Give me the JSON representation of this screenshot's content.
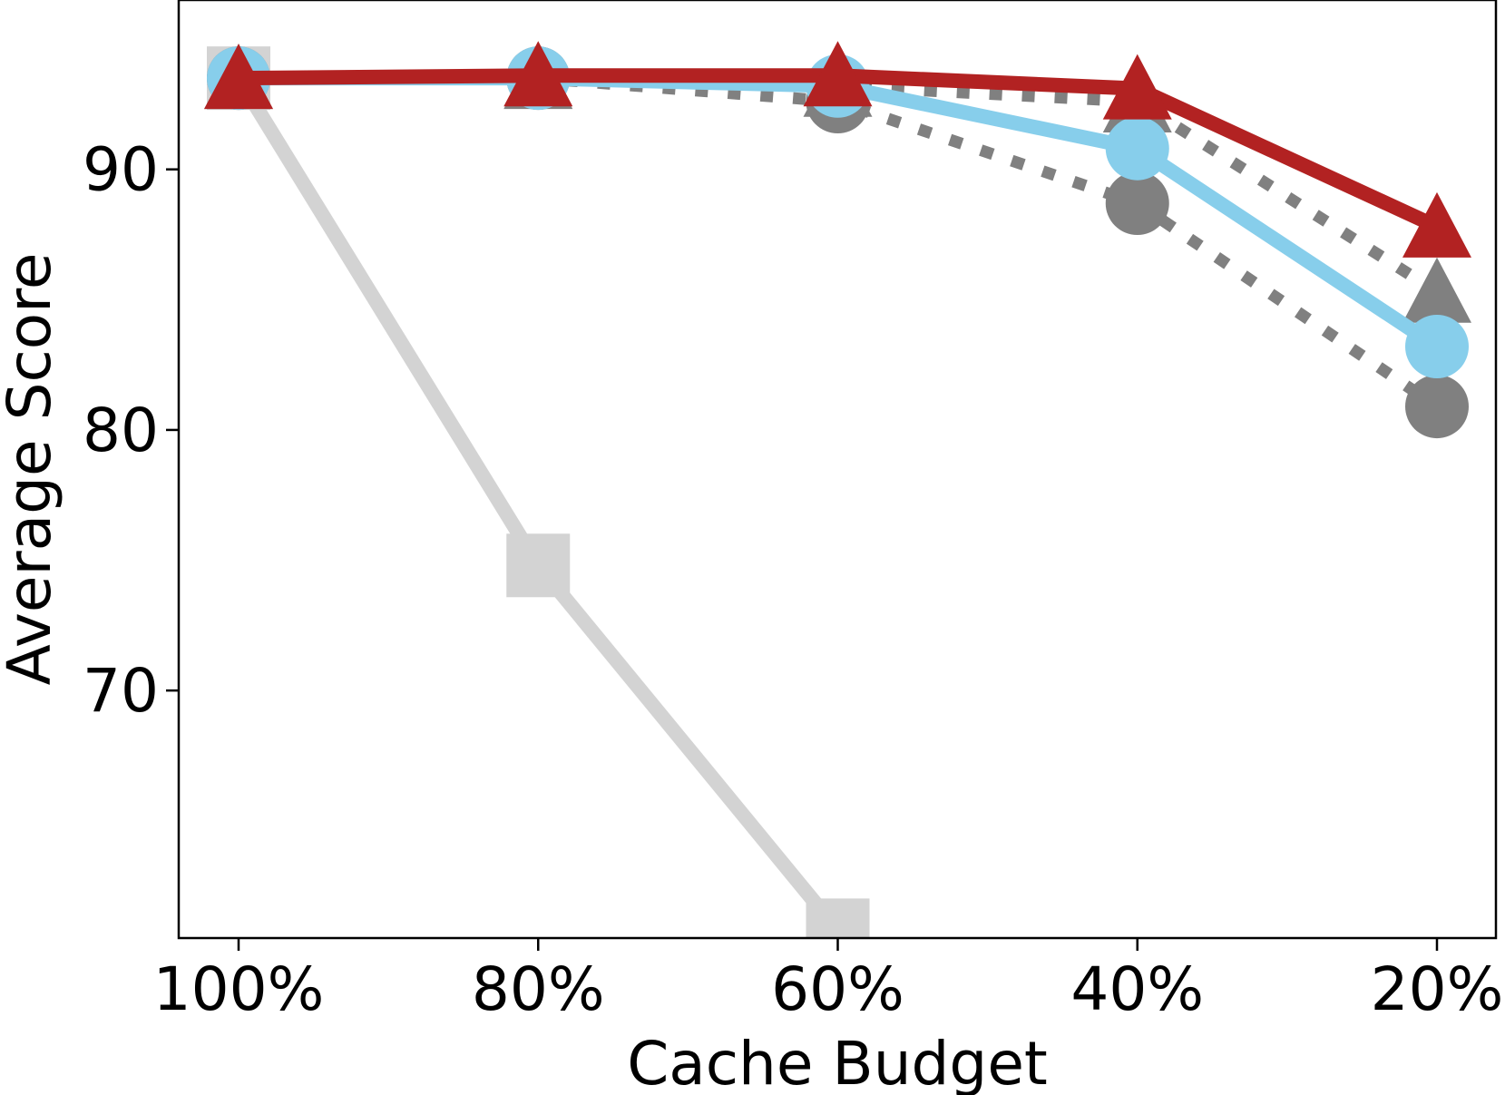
{
  "chart_data": {
    "type": "line",
    "title": "",
    "xlabel": "Cache Budget",
    "ylabel": "Average Score",
    "categories": [
      "100%",
      "80%",
      "60%",
      "40%",
      "20%"
    ],
    "ylim": [
      60.5,
      96.5
    ],
    "yticks": [
      70,
      80,
      90
    ],
    "grid": false,
    "legend": "none",
    "series": [
      {
        "style": "solid",
        "marker": "square",
        "color": "#d3d3d3",
        "values": [
          93.5,
          74.8,
          60.8,
          null,
          null
        ]
      },
      {
        "style": "dotted",
        "marker": "circle",
        "color": "#808080",
        "values": [
          93.5,
          93.5,
          92.6,
          88.7,
          80.9
        ]
      },
      {
        "style": "dotted",
        "marker": "triangle",
        "color": "#808080",
        "values": [
          93.5,
          93.5,
          93.2,
          92.6,
          85.3
        ]
      },
      {
        "style": "solid",
        "marker": "circle",
        "color": "#87ceeb",
        "values": [
          93.5,
          93.5,
          93.2,
          90.8,
          83.2
        ]
      },
      {
        "style": "solid",
        "marker": "triangle",
        "color": "#b22222",
        "values": [
          93.5,
          93.6,
          93.6,
          93.1,
          87.8
        ]
      }
    ]
  }
}
